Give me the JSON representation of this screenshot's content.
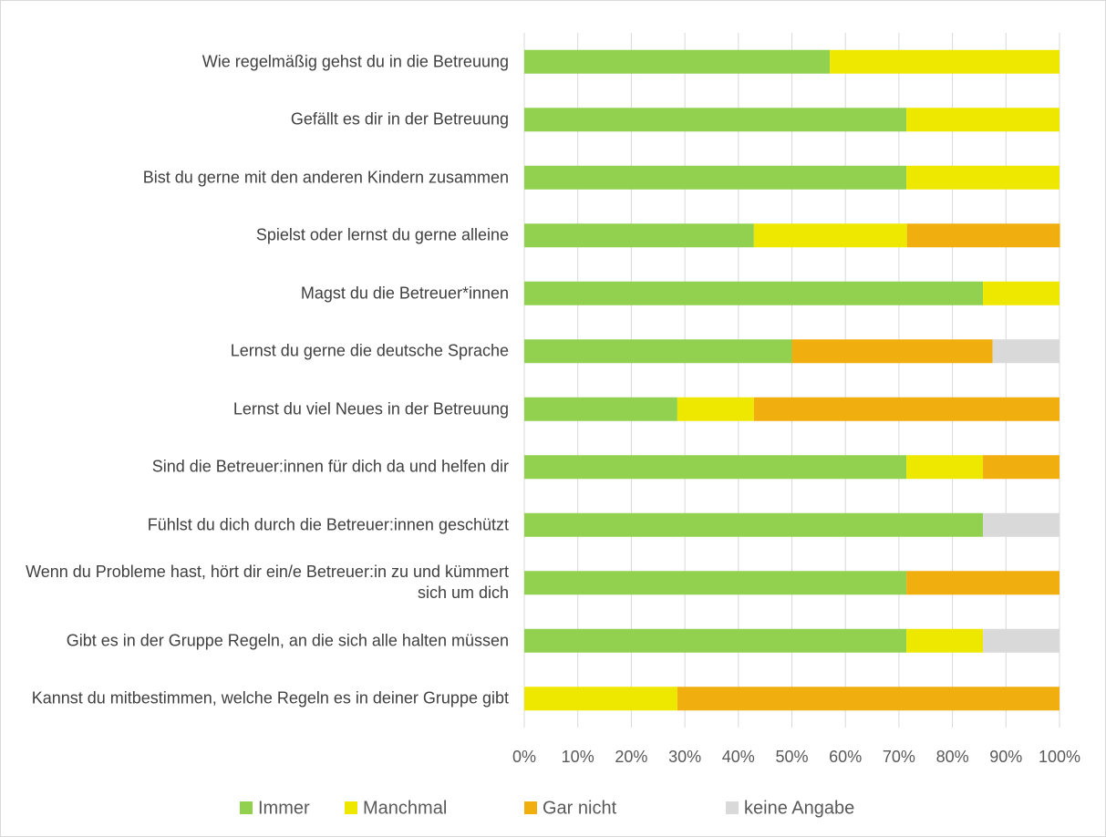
{
  "chart_data": {
    "type": "stacked-bar-horizontal",
    "categories": [
      "Wie regelmäßig gehst du in die Betreuung",
      "Gefällt es dir in der Betreuung",
      "Bist du gerne mit den anderen Kindern zusammen",
      "Spielst oder lernst du gerne alleine",
      "Magst du die Betreuer*innen",
      "Lernst du gerne die deutsche Sprache",
      "Lernst du viel Neues in der Betreuung",
      "Sind die Betreuer:innen für dich da und helfen dir",
      "Fühlst du dich durch die Betreuer:innen geschützt",
      "Wenn du Probleme hast, hört dir ein/e  Betreuer:in zu und kümmert sich um dich",
      "Gibt es in der Gruppe Regeln, an die sich alle halten müssen",
      "Kannst du mitbestimmen, welche Regeln es in deiner Gruppe gibt"
    ],
    "series": [
      {
        "name": "Immer",
        "color": "#92d050",
        "values": [
          57.1,
          71.4,
          71.4,
          42.9,
          85.7,
          50,
          28.6,
          71.4,
          85.7,
          71.4,
          71.4,
          0
        ]
      },
      {
        "name": "Manchmal",
        "color": "#eee800",
        "values": [
          42.9,
          28.6,
          28.6,
          28.6,
          14.3,
          0,
          14.3,
          14.3,
          0,
          0,
          14.3,
          28.6
        ]
      },
      {
        "name": "Gar nicht",
        "color": "#f0ae0f",
        "values": [
          0,
          0,
          0,
          28.6,
          0,
          37.5,
          57.1,
          14.3,
          0,
          28.6,
          0,
          71.4
        ]
      },
      {
        "name": "keine Angabe",
        "color": "#d9d9d9",
        "values": [
          0,
          0,
          0,
          0,
          0,
          12.5,
          0,
          0,
          14.3,
          0,
          14.3,
          0
        ]
      }
    ],
    "xlim": [
      0,
      100
    ],
    "xticks": [
      {
        "value": 0,
        "label": "0%"
      },
      {
        "value": 10,
        "label": "10%"
      },
      {
        "value": 20,
        "label": "20%"
      },
      {
        "value": 30,
        "label": "30%"
      },
      {
        "value": 40,
        "label": "40%"
      },
      {
        "value": 50,
        "label": "50%"
      },
      {
        "value": 60,
        "label": "60%"
      },
      {
        "value": 70,
        "label": "70%"
      },
      {
        "value": 80,
        "label": "80%"
      },
      {
        "value": 90,
        "label": "90%"
      },
      {
        "value": 100,
        "label": "100%"
      }
    ],
    "grid": true,
    "legend": "bottom"
  }
}
